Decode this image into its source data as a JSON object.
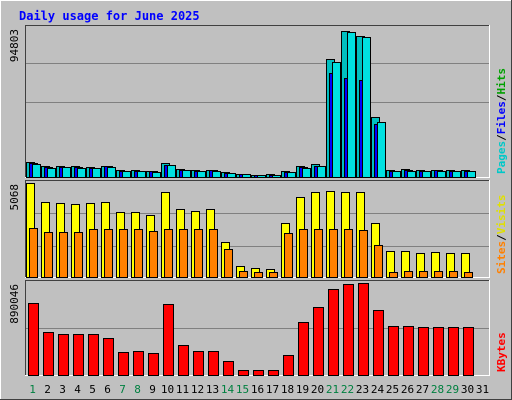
{
  "chart_data": [
    {
      "type": "bar",
      "title": "Daily usage for June 2025",
      "categories": [
        "1",
        "2",
        "3",
        "4",
        "5",
        "6",
        "7",
        "8",
        "9",
        "10",
        "11",
        "12",
        "13",
        "14",
        "15",
        "16",
        "17",
        "18",
        "19",
        "20",
        "21",
        "22",
        "23",
        "24",
        "25",
        "26",
        "27",
        "28",
        "29",
        "30",
        "31"
      ],
      "weekend_days": [
        "1",
        "7",
        "8",
        "14",
        "15",
        "21",
        "22",
        "28",
        "29"
      ],
      "panels": [
        {
          "id": "hits",
          "max_label": "94803",
          "ymax": 94803,
          "axis_labels": [
            {
              "text": "Pages",
              "color": "#00c8c8"
            },
            {
              "text": "Files",
              "color": "#0000ff"
            },
            {
              "text": "Hits",
              "color": "#00a000"
            }
          ],
          "series": [
            {
              "name": "Hits",
              "color": "#00bfbf",
              "values": [
                9800,
                7000,
                7200,
                6700,
                6600,
                7300,
                4300,
                4500,
                3900,
                8700,
                5000,
                4500,
                4700,
                2900,
                2200,
                1500,
                1600,
                3600,
                6900,
                8000,
                75000,
                93000,
                90000,
                38000,
                4500,
                4800,
                4500,
                4700,
                4600,
                4200,
                0
              ]
            },
            {
              "name": "Files",
              "color": "#0000ff",
              "values": [
                9000,
                6400,
                6600,
                6100,
                6000,
                6700,
                3900,
                4100,
                3500,
                7900,
                4500,
                4100,
                4300,
                2600,
                2000,
                1300,
                1400,
                3200,
                6200,
                7200,
                66000,
                63000,
                62000,
                34000,
                4000,
                4300,
                4000,
                4200,
                4100,
                3800,
                0
              ]
            },
            {
              "name": "Pages",
              "color": "#00e0e0",
              "values": [
                8400,
                6000,
                6200,
                5700,
                5600,
                6300,
                3600,
                3800,
                3200,
                7400,
                4200,
                3800,
                4000,
                2400,
                1800,
                1200,
                1300,
                2900,
                5800,
                6800,
                73000,
                92000,
                89000,
                35000,
                3700,
                4000,
                3700,
                3900,
                3800,
                3500,
                0
              ]
            }
          ]
        },
        {
          "id": "visits",
          "max_label": "5068",
          "ymax": 5068,
          "axis_labels": [
            {
              "text": "Sites",
              "color": "#ff8000"
            },
            {
              "text": "Visits",
              "color": "#e0e000"
            }
          ],
          "series": [
            {
              "name": "Visits",
              "color": "#ffff00",
              "values": [
                5068,
                4050,
                4000,
                3950,
                4000,
                4050,
                3500,
                3500,
                3350,
                4600,
                3650,
                3550,
                3650,
                1900,
                600,
                500,
                450,
                2900,
                4300,
                4600,
                4650,
                4600,
                4600,
                2900,
                1400,
                1400,
                1300,
                1350,
                1300,
                1300,
                0
              ]
            },
            {
              "name": "Sites",
              "color": "#ff8000",
              "values": [
                2650,
                2450,
                2450,
                2450,
                2600,
                2600,
                2600,
                2600,
                2500,
                2600,
                2600,
                2600,
                2600,
                1500,
                300,
                250,
                250,
                2350,
                2600,
                2600,
                2600,
                2600,
                2550,
                1750,
                250,
                300,
                300,
                300,
                300,
                250,
                0
              ]
            }
          ]
        },
        {
          "id": "kbytes",
          "max_label": "890046",
          "ymax": 890046,
          "axis_labels": [
            {
              "text": "KBytes",
              "color": "#ff0000"
            }
          ],
          "series": [
            {
              "name": "KBytes",
              "color": "#ff0000",
              "values": [
                695000,
                420000,
                400000,
                392000,
                400000,
                355000,
                225000,
                235000,
                210000,
                690000,
                290000,
                230000,
                235000,
                135000,
                50000,
                50000,
                50000,
                190000,
                515000,
                655000,
                830000,
                880000,
                890046,
                630000,
                475000,
                475000,
                465000,
                460000,
                460000,
                465000,
                0
              ]
            }
          ]
        }
      ]
    }
  ]
}
